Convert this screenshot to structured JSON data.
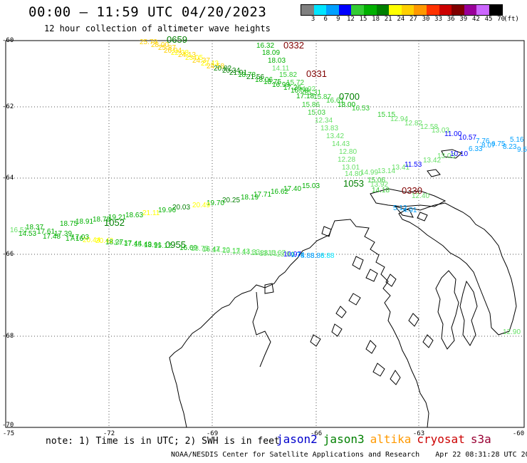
{
  "header": {
    "title": "00:00 – 11:59 UTC 04/20/2023",
    "subtitle": "12 hour collection of altimeter wave heights"
  },
  "colorbar": {
    "unit_label": "(ft)",
    "bins": [
      {
        "label": "3",
        "color": "#808080"
      },
      {
        "label": "6",
        "color": "#00e5ff"
      },
      {
        "label": "9",
        "color": "#00a0ff"
      },
      {
        "label": "12",
        "color": "#0000ff"
      },
      {
        "label": "15",
        "color": "#33cc33"
      },
      {
        "label": "18",
        "color": "#00b000"
      },
      {
        "label": "21",
        "color": "#007f00"
      },
      {
        "label": "24",
        "color": "#ffff00"
      },
      {
        "label": "27",
        "color": "#ffd000"
      },
      {
        "label": "30",
        "color": "#ff9900"
      },
      {
        "label": "33",
        "color": "#ff3300"
      },
      {
        "label": "36",
        "color": "#cc0000"
      },
      {
        "label": "39",
        "color": "#800000"
      },
      {
        "label": "42",
        "color": "#990099"
      },
      {
        "label": "45",
        "color": "#cc66ff"
      },
      {
        "label": "70",
        "color": "#000000"
      }
    ]
  },
  "axes": {
    "lat_labels": [
      "-60",
      "-62",
      "-64",
      "-66",
      "-68",
      "-70"
    ],
    "lon_labels": [
      "-75",
      "-72",
      "-69",
      "-66",
      "-63",
      "-60"
    ]
  },
  "tracks": {
    "track1": {
      "times": [
        "0659",
        "0700"
      ],
      "heights": [
        "25.79",
        "28.00",
        "25.87",
        "26.04",
        "22.38",
        "24.13",
        "23.05",
        "24.37",
        "22.43",
        "24.58",
        "20.82",
        "20.34",
        "21.91",
        "18.78",
        "21.56",
        "18.06",
        "18.75",
        "16.99",
        "17.26",
        "16.58",
        "17.18",
        "15.87",
        "16.61",
        "18.00",
        "15.86",
        "15.03",
        "16.53",
        "15.15",
        "12.94",
        "12.82",
        "12.58",
        "13.03",
        "12.34",
        "13.83",
        "13.42",
        "14.43",
        "12.80",
        "12.28",
        "13.01",
        "13.14",
        "13.41",
        "13.42",
        "11.53",
        "14.80",
        "14.99",
        "13.03",
        "15.06",
        "13.92",
        "14.18",
        "11.00",
        "10.57",
        "10.10",
        "7.76",
        "8.07",
        "6.75",
        "8.23",
        "6.33",
        "5.16",
        "9.5"
      ]
    },
    "track2": {
      "times": [
        "0332",
        "0331",
        "0330"
      ],
      "heights": [
        "16.32",
        "18.09",
        "18.03",
        "14.11",
        "15.82",
        "15.72",
        "14.92",
        "15.31",
        "12.40",
        "5.12",
        "4.91"
      ]
    },
    "track3": {
      "times": [
        "1053",
        "1052"
      ],
      "heights": [
        "15.03",
        "17.40",
        "16.62",
        "17.71",
        "18.19",
        "20.25",
        "19.70",
        "20.49",
        "20.03",
        "19.96",
        "21.11",
        "18.63",
        "19.21",
        "18.78",
        "18.91",
        "18.75",
        "18.37",
        "16.51",
        "14.53",
        "17.61",
        "17.48",
        "17.39",
        "17.16"
      ]
    },
    "track4": {
      "times": [
        "0955"
      ],
      "heights": [
        "20.44",
        "20.42",
        "17.03",
        "18.27",
        "14.37",
        "17.44",
        "15.49",
        "18.91",
        "15.12",
        "16.69",
        "13.75",
        "16.47",
        "14.20",
        "13.17",
        "13.43",
        "14.33",
        "11.88",
        "13.51",
        "15.67",
        "13.94",
        "10.97",
        "9.74",
        "8.88",
        "8.86",
        "8.88"
      ]
    },
    "track5": {
      "heights": [
        "12.90"
      ]
    }
  },
  "footer": {
    "note": "note: 1) Time is in UTC; 2) SWH is in feet",
    "legend": [
      {
        "name": "jason2",
        "color": "#0000cc"
      },
      {
        "name": "jason3",
        "color": "#008000"
      },
      {
        "name": "altika",
        "color": "#ff9900"
      },
      {
        "name": "cryosat",
        "color": "#cc0000"
      },
      {
        "name": "s3a",
        "color": "#990033"
      }
    ],
    "credit": "NOAA/NESDIS Center for Satellite Applications and Research",
    "timestamp": "Apr 22 08:31:28 UTC 2023"
  }
}
